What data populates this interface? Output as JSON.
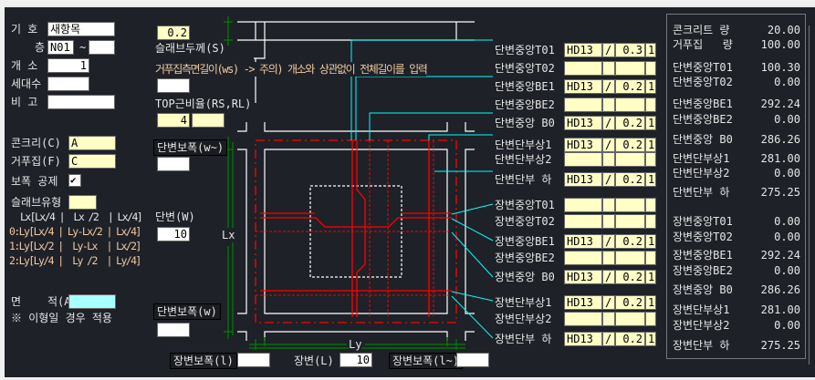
{
  "left": {
    "code_label": "기 호",
    "code_value": "새항목",
    "floor_label": "층",
    "floor_from": "N01",
    "floor_sep": "~",
    "floor_to": "",
    "count_label": "개 소",
    "count_value": "1",
    "households_label": "세대수",
    "households_value": "",
    "note_label": "비 고",
    "note_value": "",
    "concrete_label": "콘크리(C)",
    "concrete_value": "A",
    "formwork_label": "거푸집(F)",
    "formwork_value": "C",
    "beam_deduct_label": "보폭 공제",
    "beam_deduct_checked": true,
    "slab_type_label": "슬래브유형",
    "slab_type_value": "",
    "slab_type_table": [
      "Lx[Lx/4 |  Lx /2  | Lx/4]",
      "0:Ly[Lx/4 | Ly-Lx/2 | Lx/4]",
      "1:Ly[Lx/2 |  Ly-Lx  | Lx/2]",
      "2:Ly[Ly/4 |  Ly /2  | Ly/4]"
    ],
    "area_label": "면    적(A)",
    "area_value": "",
    "area_note": "※ 이형일 경우 적용"
  },
  "middle": {
    "slab_thickness_value": "0.2",
    "slab_thickness_label": "슬래브두께(S)",
    "form_side_label": "거푸집측면길이(ws) -> 주의) 개소와 상관없이 전체길이를 입력",
    "form_side_value": "",
    "top_ratio_label": "TOP근비율(RS,RL)",
    "top_ratio_rs": "4",
    "top_ratio_rl": "",
    "short_beam_w2_label": "단변보폭(w~)",
    "short_beam_w2_value": "",
    "short_side_label": "단변(W)",
    "short_side_value": "10",
    "short_beam_w_label": "단변보폭(w)",
    "short_beam_w_value": "",
    "long_beam_l_label": "장변보폭(l)",
    "long_beam_l_value": "",
    "long_side_label": "장변(L)",
    "long_side_value": "10",
    "long_beam_l2_label": "장변보폭(l~)",
    "long_beam_l2_value": "",
    "lx_label": "Lx",
    "ly_label": "Ly"
  },
  "rebar": [
    {
      "label": "단변중앙T01",
      "dia": "HD13",
      "sep": "/",
      "spacing": "0.3",
      "n": "1"
    },
    {
      "label": "단변중앙T02",
      "dia": "",
      "sep": "",
      "spacing": "",
      "n": ""
    },
    {
      "label": "단변중앙BE1",
      "dia": "HD13",
      "sep": "/",
      "spacing": "0.2",
      "n": "1"
    },
    {
      "label": "단변중앙BE2",
      "dia": "",
      "sep": "",
      "spacing": "",
      "n": ""
    },
    {
      "label": "단변중앙 B0",
      "dia": "HD13",
      "sep": "/",
      "spacing": "0.2",
      "n": "1"
    },
    {
      "label": "단변단부상1",
      "dia": "HD13",
      "sep": "/",
      "spacing": "0.2",
      "n": "1"
    },
    {
      "label": "단변단부상2",
      "dia": "",
      "sep": "",
      "spacing": "",
      "n": ""
    },
    {
      "label": "단변단부 하",
      "dia": "HD13",
      "sep": "/",
      "spacing": "0.2",
      "n": "1"
    },
    {
      "label": "장변중앙T01",
      "dia": "",
      "sep": "",
      "spacing": "",
      "n": ""
    },
    {
      "label": "장변중앙T02",
      "dia": "",
      "sep": "",
      "spacing": "",
      "n": ""
    },
    {
      "label": "장변중앙BE1",
      "dia": "HD13",
      "sep": "/",
      "spacing": "0.2",
      "n": "1"
    },
    {
      "label": "장변중앙BE2",
      "dia": "",
      "sep": "",
      "spacing": "",
      "n": ""
    },
    {
      "label": "장변중앙 B0",
      "dia": "HD13",
      "sep": "/",
      "spacing": "0.2",
      "n": "1"
    },
    {
      "label": "장변단부상1",
      "dia": "HD13",
      "sep": "/",
      "spacing": "0.2",
      "n": "1"
    },
    {
      "label": "장변단부상2",
      "dia": "",
      "sep": "",
      "spacing": "",
      "n": ""
    },
    {
      "label": "장변단부 하",
      "dia": "HD13",
      "sep": "/",
      "spacing": "0.2",
      "n": "1"
    }
  ],
  "summary": [
    {
      "label": "콘크리트 량",
      "value": "20.00"
    },
    {
      "label": "거푸집   량",
      "value": "100.00"
    },
    {
      "label": "단변중앙T01",
      "value": "100.30"
    },
    {
      "label": "단변중앙T02",
      "value": "0.00"
    },
    {
      "label": "단변중앙BE1",
      "value": "292.24"
    },
    {
      "label": "단변중앙BE2",
      "value": "0.00"
    },
    {
      "label": "단변중앙 B0",
      "value": "286.26"
    },
    {
      "label": "단변단부상1",
      "value": "281.00"
    },
    {
      "label": "단변단부상2",
      "value": "0.00"
    },
    {
      "label": "단변단부 하",
      "value": "275.25"
    },
    {
      "label": "장변중앙T01",
      "value": "0.00"
    },
    {
      "label": "장변중앙T02",
      "value": "0.00"
    },
    {
      "label": "장변중앙BE1",
      "value": "292.24"
    },
    {
      "label": "장변중앙BE2",
      "value": "0.00"
    },
    {
      "label": "장변중앙 B0",
      "value": "286.26"
    },
    {
      "label": "장변단부상1",
      "value": "281.00"
    },
    {
      "label": "장변단부상2",
      "value": "0.00"
    },
    {
      "label": "장변단부 하",
      "value": "275.25"
    }
  ],
  "colors": {
    "background": "#1e2128",
    "input_yellow": "#ffffc6",
    "input_cyan": "#a8ffff",
    "rebar_red": "#ff0000",
    "leader_cyan": "#00ffff",
    "dimension_green": "#008000"
  }
}
